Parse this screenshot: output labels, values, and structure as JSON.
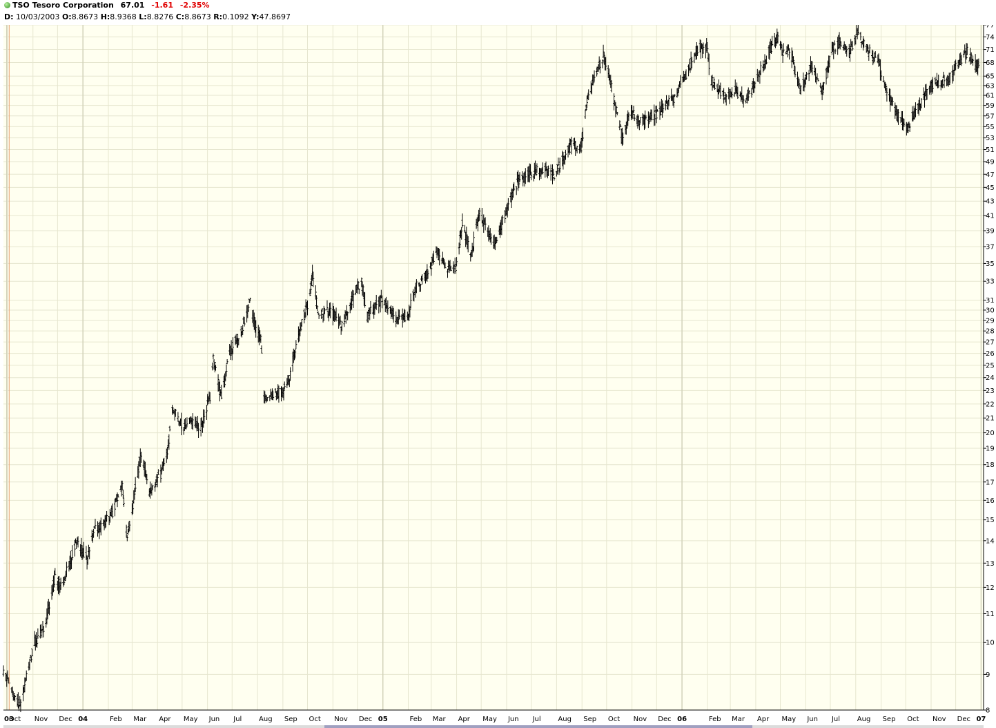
{
  "header": {
    "symbol": "TSO",
    "company": "Tesoro Corporation",
    "last": "67.01",
    "change": "-1.61",
    "change_pct": "-2.35%",
    "status_icon": "green-dot-icon",
    "ohlc": {
      "d_label": "D:",
      "date": "10/03/2003",
      "o_label": "O:",
      "open": "8.8673",
      "h_label": "H:",
      "high": "8.9368",
      "l_label": "L:",
      "low": "8.8276",
      "c_label": "C:",
      "close": "8.8673",
      "r_label": "R:",
      "range": "0.1092",
      "y_label": "Y:",
      "y": "47.8697"
    }
  },
  "colors": {
    "plot_bg": "#fffff0",
    "grid": "#e6e6cf",
    "year_grid": "#d2d2ba",
    "bars": "#000000",
    "change": "#e00000",
    "cursor": "#e8a070"
  },
  "chart_data": {
    "type": "bar",
    "style": "ohlc",
    "title": "TSO Tesoro Corporation",
    "scale": "log",
    "ylim": [
      8,
      77
    ],
    "grid": true,
    "y_ticks": [
      8,
      9,
      10,
      11,
      12,
      13,
      14,
      15,
      16,
      17,
      18,
      19,
      20,
      21,
      22,
      23,
      24,
      25,
      26,
      27,
      28,
      29,
      30,
      31,
      33,
      35,
      37,
      39,
      41,
      43,
      45,
      47,
      49,
      51,
      53,
      55,
      57,
      59,
      61,
      63,
      65,
      68,
      71,
      74,
      77
    ],
    "x_ticks": [
      {
        "label": "03",
        "date": "2003-09-30",
        "year": true
      },
      {
        "label": "Oct",
        "date": "2003-10-01"
      },
      {
        "label": "Nov",
        "date": "2003-11-01"
      },
      {
        "label": "Dec",
        "date": "2003-12-01"
      },
      {
        "label": "04",
        "date": "2004-01-01",
        "year": true
      },
      {
        "label": "Feb",
        "date": "2004-02-01"
      },
      {
        "label": "Mar",
        "date": "2004-03-01"
      },
      {
        "label": "Apr",
        "date": "2004-04-01"
      },
      {
        "label": "May",
        "date": "2004-05-01"
      },
      {
        "label": "Jun",
        "date": "2004-06-01"
      },
      {
        "label": "Jul",
        "date": "2004-07-01"
      },
      {
        "label": "Aug",
        "date": "2004-08-01"
      },
      {
        "label": "Sep",
        "date": "2004-09-01"
      },
      {
        "label": "Oct",
        "date": "2004-10-01"
      },
      {
        "label": "Nov",
        "date": "2004-11-01"
      },
      {
        "label": "Dec",
        "date": "2004-12-01"
      },
      {
        "label": "05",
        "date": "2005-01-01",
        "year": true
      },
      {
        "label": "Feb",
        "date": "2005-02-01"
      },
      {
        "label": "Mar",
        "date": "2005-03-01"
      },
      {
        "label": "Apr",
        "date": "2005-04-01"
      },
      {
        "label": "May",
        "date": "2005-05-01"
      },
      {
        "label": "Jun",
        "date": "2005-06-01"
      },
      {
        "label": "Jul",
        "date": "2005-07-01"
      },
      {
        "label": "Aug",
        "date": "2005-08-01"
      },
      {
        "label": "Sep",
        "date": "2005-09-01"
      },
      {
        "label": "Oct",
        "date": "2005-10-01"
      },
      {
        "label": "Nov",
        "date": "2005-11-01"
      },
      {
        "label": "Dec",
        "date": "2005-12-01"
      },
      {
        "label": "06",
        "date": "2006-01-01",
        "year": true
      },
      {
        "label": "Feb",
        "date": "2006-02-01"
      },
      {
        "label": "Mar",
        "date": "2006-03-01"
      },
      {
        "label": "Apr",
        "date": "2006-04-01"
      },
      {
        "label": "May",
        "date": "2006-05-01"
      },
      {
        "label": "Jun",
        "date": "2006-06-01"
      },
      {
        "label": "Jul",
        "date": "2006-07-01"
      },
      {
        "label": "Aug",
        "date": "2006-08-01"
      },
      {
        "label": "Sep",
        "date": "2006-09-01"
      },
      {
        "label": "Oct",
        "date": "2006-10-01"
      },
      {
        "label": "Nov",
        "date": "2006-11-01"
      },
      {
        "label": "Dec",
        "date": "2006-12-01"
      },
      {
        "label": "07",
        "date": "2007-01-01",
        "year": true
      }
    ],
    "cursor_date": "2003-10-03",
    "price_path": [
      [
        "2003-09-26",
        9.0
      ],
      [
        "2003-10-03",
        8.87
      ],
      [
        "2003-10-10",
        8.3
      ],
      [
        "2003-10-17",
        8.1
      ],
      [
        "2003-10-24",
        8.9
      ],
      [
        "2003-11-03",
        10.0
      ],
      [
        "2003-11-14",
        10.5
      ],
      [
        "2003-11-21",
        11.3
      ],
      [
        "2003-11-28",
        12.4
      ],
      [
        "2003-12-05",
        12.0
      ],
      [
        "2003-12-16",
        13.0
      ],
      [
        "2003-12-24",
        14.0
      ],
      [
        "2004-01-06",
        13.2
      ],
      [
        "2004-01-15",
        14.5
      ],
      [
        "2004-01-26",
        14.8
      ],
      [
        "2004-02-06",
        15.4
      ],
      [
        "2004-02-18",
        16.8
      ],
      [
        "2004-02-24",
        14.1
      ],
      [
        "2004-03-04",
        16.3
      ],
      [
        "2004-03-12",
        18.8
      ],
      [
        "2004-03-22",
        16.5
      ],
      [
        "2004-04-05",
        17.5
      ],
      [
        "2004-04-14",
        19.0
      ],
      [
        "2004-04-19",
        21.8
      ],
      [
        "2004-05-03",
        20.3
      ],
      [
        "2004-05-14",
        20.8
      ],
      [
        "2004-05-24",
        20.3
      ],
      [
        "2004-06-04",
        22.5
      ],
      [
        "2004-06-08",
        25.5
      ],
      [
        "2004-06-18",
        22.5
      ],
      [
        "2004-06-28",
        26.0
      ],
      [
        "2004-07-12",
        28.0
      ],
      [
        "2004-07-23",
        31.0
      ],
      [
        "2004-07-30",
        28.0
      ],
      [
        "2004-08-05",
        27.5
      ],
      [
        "2004-08-09",
        22.5
      ],
      [
        "2004-08-20",
        22.8
      ],
      [
        "2004-08-31",
        22.8
      ],
      [
        "2004-09-10",
        24.3
      ],
      [
        "2004-09-23",
        28.5
      ],
      [
        "2004-10-01",
        30.5
      ],
      [
        "2004-10-07",
        33.5
      ],
      [
        "2004-10-15",
        29.5
      ],
      [
        "2004-10-29",
        30.0
      ],
      [
        "2004-11-12",
        28.5
      ],
      [
        "2004-11-29",
        32.0
      ],
      [
        "2004-12-06",
        33.0
      ],
      [
        "2004-12-13",
        29.5
      ],
      [
        "2004-12-28",
        31.0
      ],
      [
        "2005-01-06",
        30.5
      ],
      [
        "2005-01-18",
        29.0
      ],
      [
        "2005-01-31",
        29.5
      ],
      [
        "2005-02-11",
        32.5
      ],
      [
        "2005-02-25",
        34.0
      ],
      [
        "2005-03-08",
        36.5
      ],
      [
        "2005-03-18",
        34.5
      ],
      [
        "2005-03-31",
        34.5
      ],
      [
        "2005-04-08",
        40.0
      ],
      [
        "2005-04-19",
        36.0
      ],
      [
        "2005-04-29",
        41.5
      ],
      [
        "2005-05-11",
        38.0
      ],
      [
        "2005-05-20",
        37.5
      ],
      [
        "2005-06-01",
        42.0
      ],
      [
        "2005-06-15",
        46.0
      ],
      [
        "2005-06-30",
        47.0
      ],
      [
        "2005-07-14",
        48.0
      ],
      [
        "2005-07-29",
        47.0
      ],
      [
        "2005-08-12",
        50.0
      ],
      [
        "2005-08-19",
        52.0
      ],
      [
        "2005-08-31",
        51.0
      ],
      [
        "2005-09-07",
        60.0
      ],
      [
        "2005-09-16",
        65.0
      ],
      [
        "2005-09-27",
        69.5
      ],
      [
        "2005-10-04",
        65.0
      ],
      [
        "2005-10-10",
        60.0
      ],
      [
        "2005-10-20",
        53.0
      ],
      [
        "2005-10-31",
        58.0
      ],
      [
        "2005-11-07",
        56.0
      ],
      [
        "2005-11-21",
        56.5
      ],
      [
        "2005-12-06",
        58.0
      ],
      [
        "2005-12-20",
        60.0
      ],
      [
        "2006-01-05",
        65.0
      ],
      [
        "2006-01-20",
        71.0
      ],
      [
        "2006-01-31",
        71.5
      ],
      [
        "2006-02-06",
        64.0
      ],
      [
        "2006-02-20",
        61.0
      ],
      [
        "2006-03-06",
        62.0
      ],
      [
        "2006-03-20",
        60.0
      ],
      [
        "2006-04-04",
        65.0
      ],
      [
        "2006-04-21",
        72.0
      ],
      [
        "2006-04-28",
        74.0
      ],
      [
        "2006-05-04",
        70.0
      ],
      [
        "2006-05-12",
        71.0
      ],
      [
        "2006-05-25",
        62.0
      ],
      [
        "2006-06-08",
        67.0
      ],
      [
        "2006-06-21",
        62.0
      ],
      [
        "2006-07-03",
        71.0
      ],
      [
        "2006-07-14",
        73.0
      ],
      [
        "2006-07-25",
        70.0
      ],
      [
        "2006-08-03",
        75.0
      ],
      [
        "2006-08-15",
        71.0
      ],
      [
        "2006-08-29",
        68.0
      ],
      [
        "2006-09-07",
        62.0
      ],
      [
        "2006-09-21",
        57.0
      ],
      [
        "2006-10-02",
        54.5
      ],
      [
        "2006-10-10",
        57.0
      ],
      [
        "2006-10-20",
        59.5
      ],
      [
        "2006-10-31",
        63.0
      ],
      [
        "2006-11-10",
        64.0
      ],
      [
        "2006-11-22",
        64.0
      ],
      [
        "2006-12-05",
        68.0
      ],
      [
        "2006-12-15",
        70.5
      ],
      [
        "2006-12-22",
        68.0
      ],
      [
        "2006-12-29",
        67.01
      ]
    ]
  }
}
